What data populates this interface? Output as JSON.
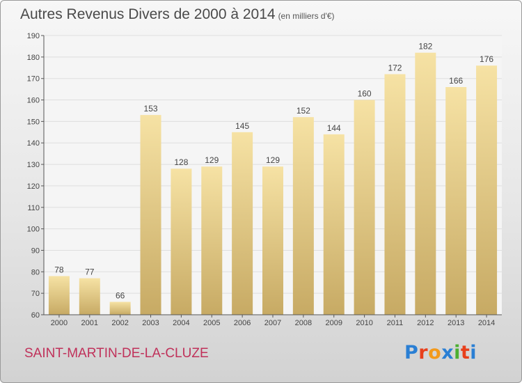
{
  "header": {
    "title": "Autres Revenus Divers de 2000 à 2014",
    "unit": "(en milliers d'€)"
  },
  "footer": {
    "commune": "SAINT-MARTIN-DE-LA-CLUZE",
    "logo": "Proxiti"
  },
  "colors": {
    "bar_top": "#f6e2a4",
    "bar_bottom": "#c7aa64",
    "grid": "#dedede",
    "axis": "#555555",
    "commune": "#c0315a",
    "logo": [
      "#2a7fd4",
      "#e8401c",
      "#f39a1b",
      "#2a7fd4",
      "#4caf32",
      "#e8401c",
      "#2a7fd4"
    ]
  },
  "chart_data": {
    "type": "bar",
    "title": "Autres Revenus Divers de 2000 à 2014",
    "xlabel": "",
    "ylabel": "",
    "categories": [
      "2000",
      "2001",
      "2002",
      "2003",
      "2004",
      "2005",
      "2006",
      "2007",
      "2008",
      "2009",
      "2010",
      "2011",
      "2012",
      "2013",
      "2014"
    ],
    "values": [
      78,
      77,
      66,
      153,
      128,
      129,
      145,
      129,
      152,
      144,
      160,
      172,
      182,
      166,
      176
    ],
    "ylim": [
      60,
      190
    ],
    "yticks": [
      60,
      70,
      80,
      90,
      100,
      110,
      120,
      130,
      140,
      150,
      160,
      170,
      180,
      190
    ],
    "grid": true,
    "legend": "none"
  }
}
